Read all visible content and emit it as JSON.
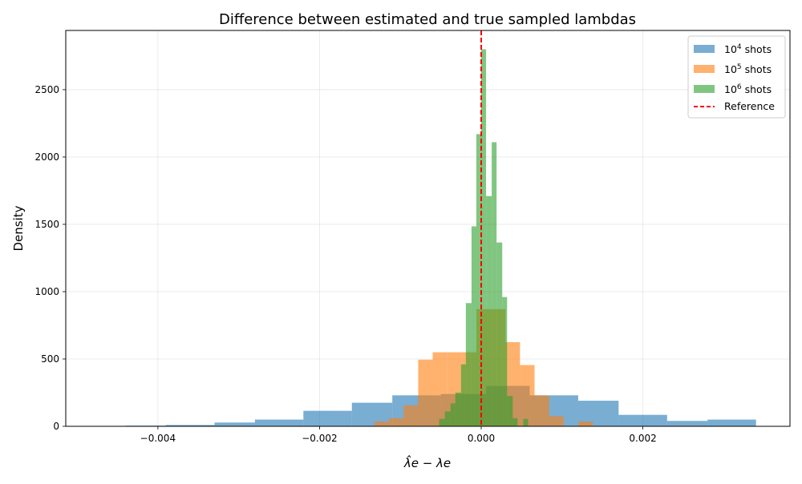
{
  "chart_data": {
    "type": "histogram",
    "title": "Difference between estimated and true sampled lambdas",
    "xlabel": "λ̂e − λe",
    "ylabel": "Density",
    "xlim": [
      -0.00514,
      0.00382
    ],
    "ylim": [
      0,
      2940
    ],
    "xticks": [
      -0.004,
      -0.002,
      0.0,
      0.002
    ],
    "xtick_labels": [
      "−0.004",
      "−0.002",
      "0.000",
      "0.002"
    ],
    "yticks": [
      0,
      500,
      1000,
      1500,
      2000,
      2500
    ],
    "ytick_labels": [
      "0",
      "500",
      "1000",
      "1500",
      "2000",
      "2500"
    ],
    "grid": true,
    "legend_position": "top-right",
    "series": [
      {
        "name_prefix": "10",
        "name_exp": "4",
        "name_suffix": " shots",
        "color": "#1f77b4",
        "opacity": 0.6,
        "bins": [
          [
            -0.005,
            -0.0044,
            3
          ],
          [
            -0.0044,
            -0.0039,
            5
          ],
          [
            -0.0039,
            -0.0033,
            10
          ],
          [
            -0.0033,
            -0.0028,
            28
          ],
          [
            -0.0028,
            -0.0022,
            50
          ],
          [
            -0.0022,
            -0.0016,
            115
          ],
          [
            -0.0016,
            -0.0011,
            175
          ],
          [
            -0.0011,
            -0.0005,
            230
          ],
          [
            -0.0005,
            6e-05,
            240
          ],
          [
            6e-05,
            0.0006,
            300
          ],
          [
            0.0006,
            0.0012,
            230
          ],
          [
            0.0012,
            0.0017,
            190
          ],
          [
            0.0017,
            0.0023,
            85
          ],
          [
            0.0023,
            0.0028,
            40
          ],
          [
            0.0028,
            0.0034,
            50
          ]
        ]
      },
      {
        "name_prefix": "10",
        "name_exp": "5",
        "name_suffix": " shots",
        "color": "#ff7f0e",
        "opacity": 0.6,
        "bins": [
          [
            -0.00132,
            -0.00114,
            35
          ],
          [
            -0.00114,
            -0.00096,
            60
          ],
          [
            -0.00096,
            -0.00078,
            155
          ],
          [
            -0.00078,
            -0.0006,
            495
          ],
          [
            -0.0006,
            -0.00042,
            550
          ],
          [
            -0.00042,
            -0.00024,
            550
          ],
          [
            -0.00024,
            -6e-05,
            550
          ],
          [
            -6e-05,
            0.00012,
            870
          ],
          [
            0.00012,
            0.0003,
            870
          ],
          [
            0.0003,
            0.00048,
            625
          ],
          [
            0.00048,
            0.00066,
            455
          ],
          [
            0.00066,
            0.00084,
            230
          ],
          [
            0.00084,
            0.00102,
            75
          ],
          [
            0.00102,
            0.0012,
            0
          ],
          [
            0.0012,
            0.00138,
            35
          ]
        ]
      },
      {
        "name_prefix": "10",
        "name_exp": "6",
        "name_suffix": " shots",
        "color": "#2ca02c",
        "opacity": 0.6,
        "bins": [
          [
            -0.00052,
            -0.00045,
            55
          ],
          [
            -0.00045,
            -0.00038,
            110
          ],
          [
            -0.00038,
            -0.00032,
            170
          ],
          [
            -0.00032,
            -0.00025,
            250
          ],
          [
            -0.00025,
            -0.00019,
            460
          ],
          [
            -0.00019,
            -0.00012,
            915
          ],
          [
            -0.00012,
            -6e-05,
            1485
          ],
          [
            -6e-05,
            0.0,
            2170
          ],
          [
            0.0,
            6e-05,
            2800
          ],
          [
            6e-05,
            0.00013,
            1710
          ],
          [
            0.00013,
            0.00019,
            2110
          ],
          [
            0.00019,
            0.00026,
            1365
          ],
          [
            0.00026,
            0.00032,
            960
          ],
          [
            0.00032,
            0.00039,
            225
          ],
          [
            0.00039,
            0.00045,
            60
          ],
          [
            0.00045,
            0.00052,
            0
          ],
          [
            0.00052,
            0.00058,
            55
          ]
        ]
      }
    ],
    "reference": {
      "name": "Reference",
      "x": 0.0,
      "color": "#ff0000"
    }
  }
}
